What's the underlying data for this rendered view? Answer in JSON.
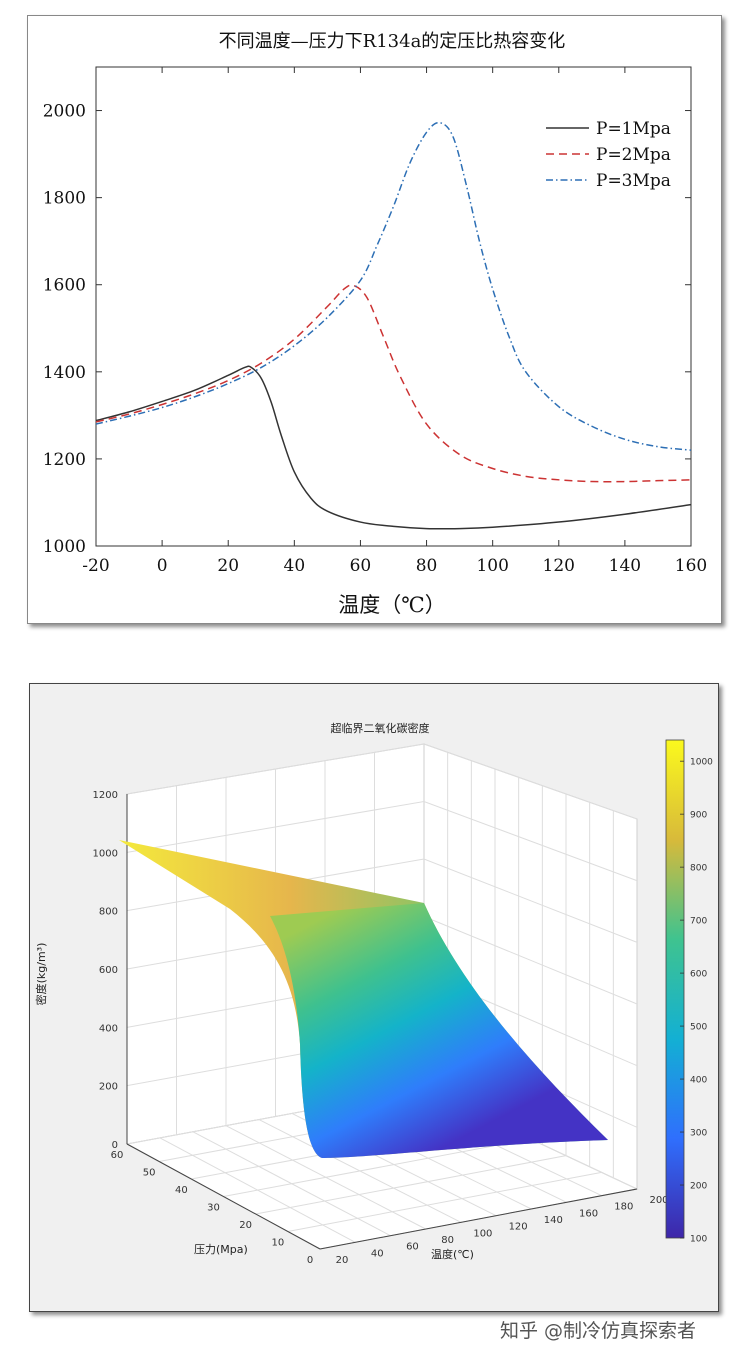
{
  "chart_data": [
    {
      "type": "line",
      "title": "不同温度—压力下R134a的定压比热容变化",
      "xlabel": "温度（℃）",
      "ylabel": "",
      "xlim": [
        -20,
        160
      ],
      "ylim": [
        1000,
        2100
      ],
      "xticks": [
        -20,
        0,
        20,
        40,
        60,
        80,
        100,
        120,
        140,
        160
      ],
      "yticks": [
        1000,
        1200,
        1400,
        1600,
        1800,
        2000
      ],
      "legend_position": "top-right",
      "series": [
        {
          "name": "P=1Mpa",
          "color": "#333333",
          "dash": "solid",
          "x": [
            -20,
            -10,
            0,
            10,
            20,
            25,
            27,
            30,
            33,
            36,
            40,
            45,
            50,
            60,
            70,
            80,
            90,
            100,
            120,
            140,
            160
          ],
          "y": [
            1288,
            1308,
            1332,
            1358,
            1392,
            1410,
            1410,
            1385,
            1330,
            1255,
            1170,
            1110,
            1080,
            1055,
            1045,
            1040,
            1040,
            1043,
            1055,
            1073,
            1095
          ]
        },
        {
          "name": "P=2Mpa",
          "color": "#cc3333",
          "dash": "dashed",
          "x": [
            -20,
            -10,
            0,
            10,
            20,
            30,
            40,
            50,
            55,
            58,
            62,
            67,
            72,
            80,
            90,
            100,
            110,
            120,
            130,
            140,
            150,
            160
          ],
          "y": [
            1285,
            1303,
            1325,
            1350,
            1380,
            1420,
            1475,
            1550,
            1590,
            1598,
            1570,
            1480,
            1390,
            1280,
            1210,
            1178,
            1160,
            1152,
            1148,
            1148,
            1150,
            1152
          ]
        },
        {
          "name": "P=3Mpa",
          "color": "#2d6fb5",
          "dash": "dashdot",
          "x": [
            -20,
            -10,
            0,
            10,
            20,
            30,
            40,
            50,
            60,
            65,
            70,
            75,
            80,
            84,
            88,
            92,
            96,
            100,
            105,
            110,
            120,
            130,
            140,
            150,
            160
          ],
          "y": [
            1280,
            1298,
            1318,
            1343,
            1373,
            1410,
            1460,
            1525,
            1610,
            1690,
            1780,
            1880,
            1950,
            1972,
            1940,
            1830,
            1700,
            1590,
            1480,
            1400,
            1320,
            1275,
            1245,
            1228,
            1220
          ]
        }
      ]
    },
    {
      "type": "surface",
      "title": "超临界二氧化碳密度",
      "xlabel": "温度(℃)",
      "ylabel": "压力(Mpa)",
      "zlabel": "密度(kg/m³)",
      "xlim": [
        20,
        200
      ],
      "ylim": [
        0,
        60
      ],
      "zlim": [
        0,
        1200
      ],
      "xticks": [
        20,
        40,
        60,
        80,
        100,
        120,
        140,
        160,
        180,
        200
      ],
      "yticks": [
        0,
        10,
        20,
        30,
        40,
        50,
        60
      ],
      "zticks": [
        0,
        200,
        400,
        600,
        800,
        1000,
        1200
      ],
      "colorbar": {
        "min": 100,
        "max": 1040,
        "ticks": [
          100,
          200,
          300,
          400,
          500,
          600,
          700,
          800,
          900,
          1000
        ]
      },
      "corner_values": [
        {
          "temperature": 20,
          "pressure": 60,
          "density": 1040
        },
        {
          "temperature": 180,
          "pressure": 60,
          "density": 830
        },
        {
          "temperature": 40,
          "pressure": 5,
          "density": 100
        },
        {
          "temperature": 180,
          "pressure": 5,
          "density": 100
        }
      ]
    }
  ],
  "watermark": "知乎 @制冷仿真探索者"
}
